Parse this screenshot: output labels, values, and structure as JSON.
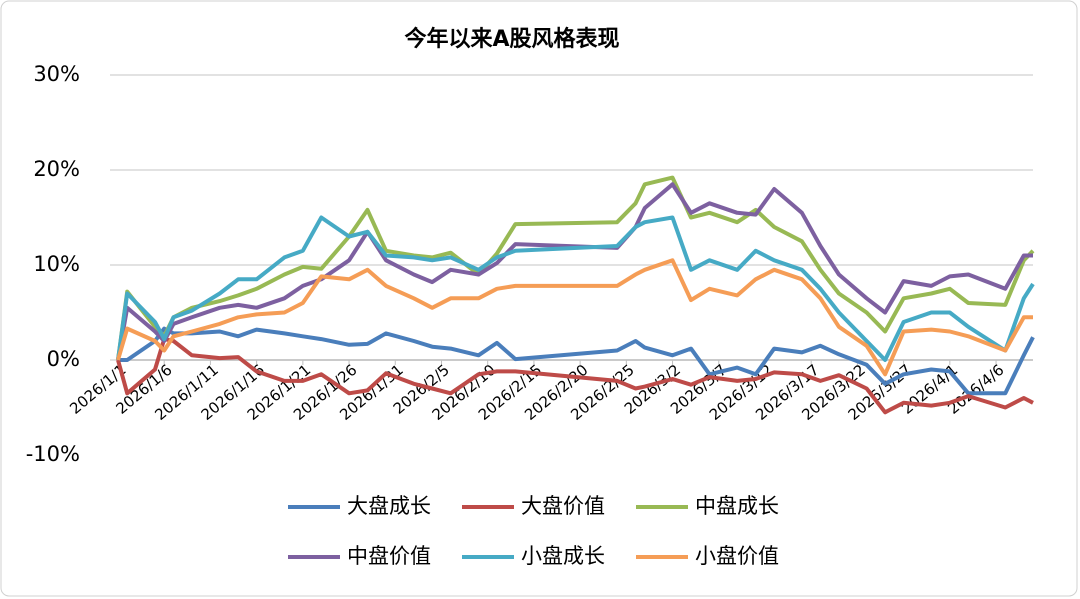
{
  "chart_data": {
    "type": "line",
    "title": "今年以来A股风格表现",
    "x": [
      "2026/1/1",
      "2026/1/2",
      "2026/1/5",
      "2026/1/6",
      "2026/1/7",
      "2026/1/9",
      "2026/1/12",
      "2026/1/14",
      "2026/1/16",
      "2026/1/19",
      "2026/1/21",
      "2026/1/23",
      "2026/1/26",
      "2026/1/28",
      "2026/1/30",
      "2026/2/2",
      "2026/2/4",
      "2026/2/6",
      "2026/2/9",
      "2026/2/11",
      "2026/2/13",
      "2026/2/24",
      "2026/2/26",
      "2026/2/27",
      "2026/3/2",
      "2026/3/4",
      "2026/3/6",
      "2026/3/9",
      "2026/3/11",
      "2026/3/13",
      "2026/3/16",
      "2026/3/18",
      "2026/3/20",
      "2026/3/23",
      "2026/3/25",
      "2026/3/27",
      "2026/3/30",
      "2026/4/1",
      "2026/4/3",
      "2026/4/7",
      "2026/4/9",
      "2026/4/10"
    ],
    "series": [
      {
        "name": "大盘成长",
        "color": "#4a7ebb",
        "values": [
          0,
          0,
          2,
          3.3,
          2.8,
          2.8,
          3,
          2.5,
          3.2,
          2.8,
          2.5,
          2.2,
          1.6,
          1.7,
          2.8,
          2,
          1.4,
          1.2,
          0.5,
          1.8,
          0.1,
          1,
          2,
          1.3,
          0.5,
          1.2,
          -1.5,
          -0.8,
          -1.5,
          1.2,
          0.8,
          1.5,
          0.6,
          -0.5,
          -2.5,
          -1.5,
          -1,
          -1.2,
          -3.5,
          -3.5,
          0.5,
          2.4
        ]
      },
      {
        "name": "大盘价值",
        "color": "#be4b48",
        "values": [
          0,
          -3.5,
          -1,
          2.2,
          2,
          0.5,
          0.2,
          0.3,
          -1.2,
          -2.2,
          -2.2,
          -1.5,
          -3.5,
          -3.2,
          -1.4,
          -2.5,
          -3,
          -3.5,
          -1.5,
          -1.2,
          -1.2,
          -2.2,
          -3,
          -2.8,
          -2,
          -2.6,
          -1.8,
          -2.2,
          -2,
          -1.3,
          -1.5,
          -2.2,
          -1.6,
          -3,
          -5.5,
          -4.5,
          -4.8,
          -4.5,
          -3.8,
          -5,
          -4,
          -4.5
        ]
      },
      {
        "name": "中盘成长",
        "color": "#98b954",
        "values": [
          0,
          7.2,
          3.5,
          2.5,
          4.5,
          5.5,
          6.2,
          6.8,
          7.5,
          9,
          9.8,
          9.6,
          13,
          15.8,
          11.5,
          11,
          10.8,
          11.3,
          9,
          11.2,
          14.3,
          14.5,
          16.5,
          18.5,
          19.2,
          15,
          15.5,
          14.5,
          15.8,
          14,
          12.5,
          9.5,
          7,
          5,
          3,
          6.5,
          7,
          7.5,
          6,
          5.8,
          10.5,
          11.5
        ]
      },
      {
        "name": "中盘价值",
        "color": "#7d60a0",
        "values": [
          0,
          5.5,
          3,
          2,
          3.8,
          4.5,
          5.5,
          5.8,
          5.5,
          6.5,
          7.8,
          8.5,
          10.5,
          13.5,
          10.5,
          9,
          8.2,
          9.5,
          9,
          10.2,
          12.2,
          11.8,
          14,
          16,
          18.5,
          15.5,
          16.5,
          15.5,
          15.3,
          18,
          15.5,
          12,
          9,
          6.5,
          5,
          8.3,
          7.8,
          8.8,
          9,
          7.5,
          11,
          11
        ]
      },
      {
        "name": "小盘成长",
        "color": "#46aac5",
        "values": [
          0,
          7,
          4,
          2.2,
          4.5,
          5.2,
          7,
          8.5,
          8.5,
          10.8,
          11.5,
          15,
          13,
          13.5,
          11,
          10.8,
          10.5,
          10.8,
          9.5,
          10.8,
          11.5,
          12,
          14,
          14.5,
          15,
          9.5,
          10.5,
          9.5,
          11.5,
          10.5,
          9.5,
          7.5,
          5,
          2,
          0,
          4,
          5,
          5,
          3.5,
          1,
          6.5,
          8
        ]
      },
      {
        "name": "小盘价值",
        "color": "#f59d56",
        "values": [
          0,
          3.3,
          2,
          1,
          2.5,
          3,
          3.8,
          4.5,
          4.8,
          5,
          6,
          8.8,
          8.5,
          9.5,
          7.8,
          6.5,
          5.5,
          6.5,
          6.5,
          7.5,
          7.8,
          7.8,
          9,
          9.5,
          10.5,
          6.3,
          7.5,
          6.8,
          8.5,
          9.5,
          8.5,
          6.5,
          3.5,
          1.5,
          -1.5,
          3,
          3.2,
          3,
          2.5,
          1,
          4.5,
          4.5
        ]
      }
    ],
    "xlim": [
      "2026/1/1",
      "2026/4/10"
    ],
    "xticks": [
      "2026/1/1",
      "2026/1/6",
      "2026/1/11",
      "2026/1/16",
      "2026/1/21",
      "2026/1/26",
      "2026/1/31",
      "2026/2/5",
      "2026/2/10",
      "2026/2/15",
      "2026/2/20",
      "2026/2/25",
      "2026/3/2",
      "2026/3/7",
      "2026/3/12",
      "2026/3/17",
      "2026/3/22",
      "2026/3/27",
      "2026/4/1",
      "2026/4/6"
    ],
    "ylim": [
      -10,
      30
    ],
    "yticks": [
      {
        "value": -10,
        "label": "-10%"
      },
      {
        "value": 0,
        "label": "0%"
      },
      {
        "value": 10,
        "label": "10%"
      },
      {
        "value": 20,
        "label": "20%"
      },
      {
        "value": 30,
        "label": "30%"
      }
    ],
    "grid": true
  }
}
